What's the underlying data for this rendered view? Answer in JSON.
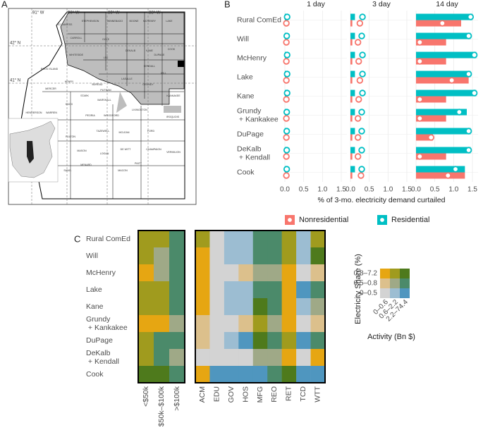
{
  "chart_data": [
    {
      "type": "map",
      "panel": "A",
      "lon_labels": [
        "91° W",
        "90° W",
        "89° W",
        "88° W"
      ],
      "lat_labels": [
        "42° N",
        "41° N"
      ],
      "counties": [
        "JO DAVIESS",
        "STEPHENSON",
        "WINNEBAGO",
        "BOONE",
        "MCHENRY",
        "LAKE",
        "CARROLL",
        "OGLE",
        "DEKALB",
        "KANE",
        "COOK",
        "DUPAGE",
        "WHITESIDE",
        "LEE",
        "KENDALL",
        "WILL",
        "ROCK ISLAND",
        "HENRY",
        "BUREAU",
        "LASALLE",
        "GRUNDY",
        "KANKAKEE",
        "MERCER",
        "STARK",
        "PUTNAM",
        "MARSHALL",
        "LIVINGSTON",
        "IROQUOIS",
        "KNOX",
        "PEORIA",
        "WOODFORD",
        "FORD",
        "HENDERSON",
        "WARREN",
        "FULTON",
        "TAZEWELL",
        "MCLEAN",
        "VERMILION",
        "CHAMPAIGN",
        "MASON",
        "LOGAN",
        "DE WITT",
        "MENARD",
        "MACON",
        "PIATT",
        "SANG."
      ]
    },
    {
      "type": "bar",
      "panel": "B",
      "orientation": "horizontal",
      "categories": [
        "Rural ComEd",
        "Will",
        "McHenry",
        "Lake",
        "Kane",
        "Grundy\n + Kankakee",
        "DuPage",
        "DeKalb\n + Kendall",
        "Cook"
      ],
      "series": [
        {
          "name": "Nonresidential",
          "color": "#F8766D"
        },
        {
          "name": "Residential",
          "color": "#00BFC4"
        }
      ],
      "facets": [
        {
          "title": "1 day",
          "series": [
            {
              "values": [
                0,
                0,
                0,
                0,
                0,
                0,
                0,
                0,
                0
              ],
              "markers": [
                0.04,
                0.04,
                0.04,
                0.04,
                0.04,
                0.04,
                0.04,
                0.04,
                0.04
              ]
            },
            {
              "values": [
                0.05,
                0.05,
                0.05,
                0.05,
                0.05,
                0.05,
                0.05,
                0.05,
                0.05
              ],
              "markers": [
                0.06,
                0.05,
                0.06,
                0.06,
                0.06,
                0.05,
                0.05,
                0.05,
                0.05
              ]
            }
          ]
        },
        {
          "title": "3 day",
          "series": [
            {
              "values": [
                0.05,
                0.05,
                0.05,
                0.05,
                0.05,
                0.05,
                0.05,
                0.05,
                0.05
              ],
              "markers": [
                0.25,
                0.2,
                0.22,
                0.25,
                0.22,
                0.2,
                0.2,
                0.2,
                0.28
              ]
            },
            {
              "values": [
                0.12,
                0.12,
                0.12,
                0.12,
                0.12,
                0.12,
                0.12,
                0.12,
                0.12
              ],
              "markers": [
                0.32,
                0.3,
                0.32,
                0.32,
                0.32,
                0.3,
                0.3,
                0.3,
                0.3
              ]
            }
          ]
        },
        {
          "title": "14 day",
          "series": [
            {
              "values": [
                1.2,
                0.8,
                0.8,
                1.4,
                0.8,
                0.8,
                0.45,
                0.8,
                1.3
              ],
              "markers": [
                0.7,
                0.1,
                0.1,
                0.95,
                0.1,
                0.1,
                0.4,
                0.1,
                0.85
              ]
            },
            {
              "values": [
                1.5,
                1.45,
                1.6,
                1.45,
                1.6,
                1.35,
                1.45,
                1.45,
                1.3
              ],
              "markers": [
                1.45,
                1.4,
                1.55,
                1.4,
                1.55,
                1.15,
                1.4,
                1.4,
                1.05
              ]
            }
          ]
        }
      ],
      "xlim": [
        0,
        1.65
      ],
      "xticks": [
        {
          "value": 0,
          "label": "0.0"
        },
        {
          "value": 0.5,
          "label": "0.5"
        },
        {
          "value": 1,
          "label": "1.0"
        },
        {
          "value": 1.5,
          "label": "1.5"
        }
      ],
      "xlabel": "% of 3-mo. electricity demand curtailed",
      "grid": true,
      "legend": "bottom"
    },
    {
      "type": "heatmap",
      "panel": "C",
      "rows": [
        "Rural ComEd",
        "Will",
        "McHenry",
        "Lake",
        "Kane",
        "Grundy\n + Kankakee",
        "DuPage",
        "DeKalb\n + Kendall",
        "Cook"
      ],
      "panels": [
        {
          "columns": [
            "<$50k",
            "$50k–$100k",
            ">$100k"
          ],
          "cells": [
            [
              [
                2,
                1
              ],
              [
                2,
                1
              ],
              [
                1,
                2
              ]
            ],
            [
              [
                2,
                1
              ],
              [
                1,
                1
              ],
              [
                1,
                2
              ]
            ],
            [
              [
                2,
                0
              ],
              [
                1,
                1
              ],
              [
                1,
                2
              ]
            ],
            [
              [
                2,
                1
              ],
              [
                2,
                1
              ],
              [
                1,
                2
              ]
            ],
            [
              [
                2,
                1
              ],
              [
                2,
                1
              ],
              [
                1,
                2
              ]
            ],
            [
              [
                2,
                0
              ],
              [
                2,
                0
              ],
              [
                1,
                1
              ]
            ],
            [
              [
                2,
                1
              ],
              [
                1,
                2
              ],
              [
                1,
                2
              ]
            ],
            [
              [
                2,
                1
              ],
              [
                1,
                2
              ],
              [
                1,
                1
              ]
            ],
            [
              [
                2,
                2
              ],
              [
                2,
                2
              ],
              [
                1,
                2
              ]
            ]
          ]
        },
        {
          "columns": [
            "ACM",
            "EDU",
            "GOV",
            "HOS",
            "MFG",
            "REO",
            "RET",
            "TCD",
            "WTT"
          ],
          "cells": [
            [
              [
                2,
                1
              ],
              [
                0,
                0
              ],
              [
                0,
                1
              ],
              [
                0,
                1
              ],
              [
                1,
                2
              ],
              [
                1,
                2
              ],
              [
                2,
                1
              ],
              [
                0,
                1
              ],
              [
                2,
                1
              ]
            ],
            [
              [
                2,
                0
              ],
              [
                0,
                0
              ],
              [
                0,
                1
              ],
              [
                0,
                1
              ],
              [
                1,
                2
              ],
              [
                1,
                2
              ],
              [
                2,
                1
              ],
              [
                0,
                1
              ],
              [
                2,
                2
              ]
            ],
            [
              [
                2,
                0
              ],
              [
                0,
                0
              ],
              [
                0,
                0
              ],
              [
                1,
                0
              ],
              [
                1,
                1
              ],
              [
                1,
                1
              ],
              [
                2,
                0
              ],
              [
                0,
                0
              ],
              [
                1,
                0
              ]
            ],
            [
              [
                2,
                0
              ],
              [
                0,
                0
              ],
              [
                0,
                1
              ],
              [
                0,
                1
              ],
              [
                1,
                2
              ],
              [
                1,
                2
              ],
              [
                2,
                0
              ],
              [
                0,
                2
              ],
              [
                1,
                2
              ]
            ],
            [
              [
                2,
                0
              ],
              [
                0,
                0
              ],
              [
                0,
                1
              ],
              [
                0,
                1
              ],
              [
                2,
                2
              ],
              [
                1,
                2
              ],
              [
                2,
                0
              ],
              [
                0,
                1
              ],
              [
                1,
                1
              ]
            ],
            [
              [
                1,
                0
              ],
              [
                0,
                0
              ],
              [
                0,
                0
              ],
              [
                1,
                0
              ],
              [
                2,
                1
              ],
              [
                1,
                1
              ],
              [
                2,
                0
              ],
              [
                0,
                0
              ],
              [
                1,
                0
              ]
            ],
            [
              [
                1,
                0
              ],
              [
                0,
                0
              ],
              [
                0,
                1
              ],
              [
                0,
                2
              ],
              [
                2,
                2
              ],
              [
                1,
                2
              ],
              [
                2,
                1
              ],
              [
                0,
                2
              ],
              [
                1,
                2
              ]
            ],
            [
              [
                0,
                0
              ],
              [
                0,
                0
              ],
              [
                0,
                0
              ],
              [
                0,
                0
              ],
              [
                1,
                1
              ],
              [
                1,
                1
              ],
              [
                2,
                0
              ],
              [
                0,
                0
              ],
              [
                2,
                0
              ]
            ],
            [
              [
                2,
                0
              ],
              [
                0,
                2
              ],
              [
                0,
                2
              ],
              [
                0,
                2
              ],
              [
                0,
                2
              ],
              [
                1,
                2
              ],
              [
                2,
                2
              ],
              [
                0,
                2
              ],
              [
                0,
                2
              ]
            ]
          ]
        }
      ],
      "palette": [
        [
          "#d3d3d3",
          "#9cbdd2",
          "#4f96bf"
        ],
        [
          "#dcc08c",
          "#9fa987",
          "#4b8a6a"
        ],
        [
          "#e6a612",
          "#a09b1e",
          "#4e7a1c"
        ]
      ],
      "legend": {
        "y_title": "Electricity Share (%)",
        "y_labels": [
          "0–0.5",
          "0.5–0.8",
          "0.8–7.2"
        ],
        "x_title": "Activity (Bn $)",
        "x_labels": [
          "0–0.6",
          "0.6–2.2",
          "2.2–74.4"
        ]
      }
    }
  ]
}
